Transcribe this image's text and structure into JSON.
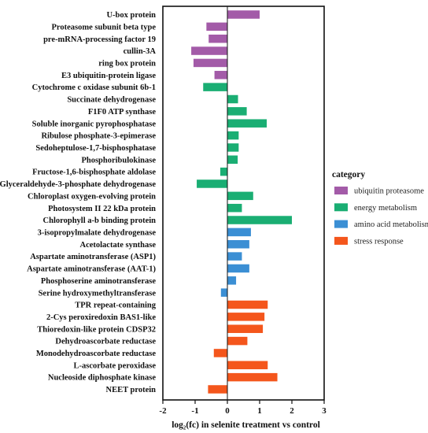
{
  "chart_data": {
    "type": "bar",
    "orientation": "horizontal",
    "title": "",
    "xlabel": "log₂(fc) in selenite treatment  vs control",
    "ylabel": "",
    "xlim": [
      -2,
      3
    ],
    "xticks": [
      "-2",
      "-1",
      "0",
      "1",
      "2",
      "3"
    ],
    "grid": false,
    "legend_placement": "right",
    "legend_title": "category",
    "categories": [
      {
        "name": "ubiquitin proteasome",
        "color": "#a35ba8"
      },
      {
        "name": "energy metabolism",
        "color": "#1aae73"
      },
      {
        "name": "amino acid metabolism",
        "color": "#3b8fd4"
      },
      {
        "name": "stress response",
        "color": "#f4561c"
      }
    ],
    "bars": [
      {
        "label": "U-box protein",
        "value": 1.0,
        "category": "ubiquitin proteasome"
      },
      {
        "label": "Proteasome subunit beta type",
        "value": -0.65,
        "category": "ubiquitin proteasome"
      },
      {
        "label": "pre-mRNA-processing factor 19",
        "value": -0.58,
        "category": "ubiquitin proteasome"
      },
      {
        "label": "cullin-3A",
        "value": -1.12,
        "category": "ubiquitin proteasome"
      },
      {
        "label": "ring box protein",
        "value": -1.05,
        "category": "ubiquitin proteasome"
      },
      {
        "label": "E3 ubiquitin-protein ligase",
        "value": -0.4,
        "category": "ubiquitin proteasome"
      },
      {
        "label": "Cytochrome c oxidase subunit 6b-1",
        "value": -0.75,
        "category": "energy metabolism"
      },
      {
        "label": "Succinate dehydrogenase",
        "value": 0.33,
        "category": "energy metabolism"
      },
      {
        "label": "F1F0 ATP synthase",
        "value": 0.6,
        "category": "energy metabolism"
      },
      {
        "label": "Soluble inorganic pyrophosphatase",
        "value": 1.22,
        "category": "energy metabolism"
      },
      {
        "label": "Ribulose phosphate-3-epimerase",
        "value": 0.35,
        "category": "energy metabolism"
      },
      {
        "label": "Sedoheptulose-1,7-bisphosphatase",
        "value": 0.35,
        "category": "energy metabolism"
      },
      {
        "label": "Phosphoribulokinase",
        "value": 0.32,
        "category": "energy metabolism"
      },
      {
        "label": "Fructose-1,6-bisphosphate aldolase",
        "value": -0.22,
        "category": "energy metabolism"
      },
      {
        "label": "Glyceraldehyde-3-phosphate dehydrogenase",
        "value": -0.95,
        "category": "energy metabolism"
      },
      {
        "label": "Chloroplast oxygen-evolving protein",
        "value": 0.8,
        "category": "energy metabolism"
      },
      {
        "label": "Photosystem II 22 kDa protein",
        "value": 0.45,
        "category": "energy metabolism"
      },
      {
        "label": "Chlorophyll a-b binding protein",
        "value": 2.0,
        "category": "energy metabolism"
      },
      {
        "label": "3-isopropylmalate dehydrogenase",
        "value": 0.73,
        "category": "amino acid metabolism"
      },
      {
        "label": "Acetolactate synthase",
        "value": 0.68,
        "category": "amino acid metabolism"
      },
      {
        "label": "Aspartate aminotransferase (ASP1)",
        "value": 0.45,
        "category": "amino acid metabolism"
      },
      {
        "label": "Aspartate aminotransferase (AAT-1)",
        "value": 0.68,
        "category": "amino acid metabolism"
      },
      {
        "label": "Phosphoserine aminotransferase",
        "value": 0.27,
        "category": "amino acid metabolism"
      },
      {
        "label": "Serine hydroxymethyltransferase",
        "value": -0.2,
        "category": "amino acid metabolism"
      },
      {
        "label": "TPR repeat-containing",
        "value": 1.25,
        "category": "stress response"
      },
      {
        "label": "2-Cys peroxiredoxin BAS1-like",
        "value": 1.15,
        "category": "stress response"
      },
      {
        "label": "Thioredoxin-like protein CDSP32",
        "value": 1.1,
        "category": "stress response"
      },
      {
        "label": "Dehydroascorbate reductase",
        "value": 0.62,
        "category": "stress response"
      },
      {
        "label": "Monodehydroascorbate reductase",
        "value": -0.42,
        "category": "stress response"
      },
      {
        "label": "L-ascorbate peroxidase",
        "value": 1.25,
        "category": "stress response"
      },
      {
        "label": "Nucleoside diphosphate kinase",
        "value": 1.55,
        "category": "stress response"
      },
      {
        "label": "NEET protein",
        "value": -0.6,
        "category": "stress response"
      }
    ]
  }
}
